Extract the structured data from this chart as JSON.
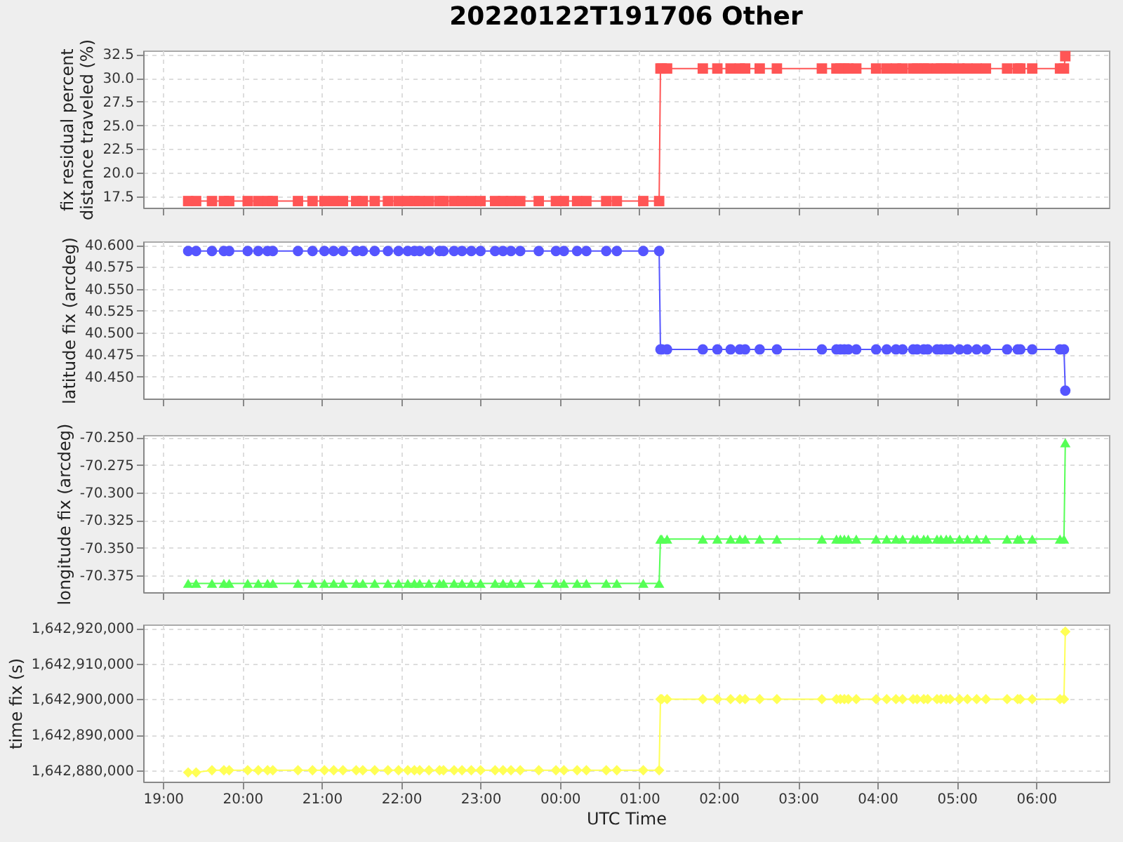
{
  "chart_data": [
    {
      "type": "line",
      "title": "20220122T191706 Other",
      "ylabel": "fix residual percent distance traveled (%)",
      "color": "#ff5555",
      "marker": "square",
      "line_style": "solid",
      "grid": true,
      "tick_labels": "y",
      "x": [
        "2022-01-22T19:19",
        "2022-01-22T19:25",
        "2022-01-22T19:37",
        "2022-01-22T19:46",
        "2022-01-22T19:50",
        "2022-01-22T20:04",
        "2022-01-22T20:12",
        "2022-01-22T20:19",
        "2022-01-22T20:23",
        "2022-01-22T20:42",
        "2022-01-22T20:53",
        "2022-01-22T21:02",
        "2022-01-22T21:09",
        "2022-01-22T21:16",
        "2022-01-22T21:26",
        "2022-01-22T21:31",
        "2022-01-22T21:40",
        "2022-01-22T21:50",
        "2022-01-22T21:58",
        "2022-01-22T22:05",
        "2022-01-22T22:10",
        "2022-01-22T22:14",
        "2022-01-22T22:21",
        "2022-01-22T22:29",
        "2022-01-22T22:32",
        "2022-01-22T22:40",
        "2022-01-22T22:46",
        "2022-01-22T22:53",
        "2022-01-22T23:00",
        "2022-01-22T23:11",
        "2022-01-22T23:17",
        "2022-01-22T23:23",
        "2022-01-22T23:30",
        "2022-01-22T23:44",
        "2022-01-22T23:57",
        "2022-01-23T00:03",
        "2022-01-23T00:13",
        "2022-01-23T00:20",
        "2022-01-23T00:35",
        "2022-01-23T00:43",
        "2022-01-23T01:03",
        "2022-01-23T01:15",
        "2022-01-23T01:16",
        "2022-01-23T01:17",
        "2022-01-23T01:21",
        "2022-01-23T01:48",
        "2022-01-23T01:59",
        "2022-01-23T02:09",
        "2022-01-23T02:16",
        "2022-01-23T02:20",
        "2022-01-23T02:31",
        "2022-01-23T02:44",
        "2022-01-23T03:18",
        "2022-01-23T03:29",
        "2022-01-23T03:32",
        "2022-01-23T03:35",
        "2022-01-23T03:38",
        "2022-01-23T03:44",
        "2022-01-23T03:59",
        "2022-01-23T04:07",
        "2022-01-23T04:14",
        "2022-01-23T04:19",
        "2022-01-23T04:27",
        "2022-01-23T04:30",
        "2022-01-23T04:35",
        "2022-01-23T04:38",
        "2022-01-23T04:45",
        "2022-01-23T04:48",
        "2022-01-23T04:52",
        "2022-01-23T04:55",
        "2022-01-23T05:02",
        "2022-01-23T05:08",
        "2022-01-23T05:15",
        "2022-01-23T05:22",
        "2022-01-23T05:38",
        "2022-01-23T05:46",
        "2022-01-23T05:48",
        "2022-01-23T05:57",
        "2022-01-23T06:18",
        "2022-01-23T06:21",
        "2022-01-23T06:22"
      ],
      "values": [
        17.0,
        17.0,
        17.0,
        17.0,
        17.0,
        17.0,
        17.0,
        17.0,
        17.0,
        17.0,
        17.0,
        17.0,
        17.0,
        17.0,
        17.0,
        17.0,
        17.0,
        17.0,
        17.0,
        17.0,
        17.0,
        17.0,
        17.0,
        17.0,
        17.0,
        17.0,
        17.0,
        17.0,
        17.0,
        17.0,
        17.0,
        17.0,
        17.0,
        17.0,
        17.0,
        17.0,
        17.0,
        17.0,
        17.0,
        17.0,
        17.0,
        17.0,
        31.0,
        31.0,
        31.0,
        31.0,
        31.0,
        31.0,
        31.0,
        31.0,
        31.0,
        31.0,
        31.0,
        31.0,
        31.0,
        31.0,
        31.0,
        31.0,
        31.0,
        31.0,
        31.0,
        31.0,
        31.0,
        31.0,
        31.0,
        31.0,
        31.0,
        31.0,
        31.0,
        31.0,
        31.0,
        31.0,
        31.0,
        31.0,
        31.0,
        31.0,
        31.0,
        31.0,
        31.0,
        31.0,
        32.3
      ],
      "xlim": [
        "2022-01-22T18:45",
        "2022-01-23T06:55"
      ],
      "xticks": [
        {
          "value": "2022-01-22T19:00",
          "label": null
        },
        {
          "value": "2022-01-22T20:00",
          "label": null
        },
        {
          "value": "2022-01-22T21:00",
          "label": null
        },
        {
          "value": "2022-01-22T22:00",
          "label": null
        },
        {
          "value": "2022-01-22T23:00",
          "label": null
        },
        {
          "value": "2022-01-23T00:00",
          "label": null
        },
        {
          "value": "2022-01-23T01:00",
          "label": null
        },
        {
          "value": "2022-01-23T02:00",
          "label": null
        },
        {
          "value": "2022-01-23T03:00",
          "label": null
        },
        {
          "value": "2022-01-23T04:00",
          "label": null
        },
        {
          "value": "2022-01-23T05:00",
          "label": null
        },
        {
          "value": "2022-01-23T06:00",
          "label": null
        }
      ],
      "ylim": [
        16.3,
        32.9
      ],
      "yticks": [
        17.5,
        {
          "value": 20,
          "label": "20.0"
        },
        22.5,
        {
          "value": 25,
          "label": "25.0"
        },
        27.5,
        {
          "value": 30,
          "label": "30.0"
        },
        32.5
      ]
    },
    {
      "type": "line",
      "ylabel": "latitude fix (arcdeg)",
      "color": "#5555ff",
      "marker": "circle",
      "line_style": "solid",
      "grid": true,
      "tick_labels": "y",
      "x": [
        "2022-01-22T19:19",
        "2022-01-22T19:25",
        "2022-01-22T19:37",
        "2022-01-22T19:46",
        "2022-01-22T19:50",
        "2022-01-22T20:04",
        "2022-01-22T20:12",
        "2022-01-22T20:19",
        "2022-01-22T20:23",
        "2022-01-22T20:42",
        "2022-01-22T20:53",
        "2022-01-22T21:02",
        "2022-01-22T21:09",
        "2022-01-22T21:16",
        "2022-01-22T21:26",
        "2022-01-22T21:31",
        "2022-01-22T21:40",
        "2022-01-22T21:50",
        "2022-01-22T21:58",
        "2022-01-22T22:05",
        "2022-01-22T22:10",
        "2022-01-22T22:14",
        "2022-01-22T22:21",
        "2022-01-22T22:29",
        "2022-01-22T22:32",
        "2022-01-22T22:40",
        "2022-01-22T22:46",
        "2022-01-22T22:53",
        "2022-01-22T23:00",
        "2022-01-22T23:11",
        "2022-01-22T23:17",
        "2022-01-22T23:23",
        "2022-01-22T23:30",
        "2022-01-22T23:44",
        "2022-01-22T23:57",
        "2022-01-23T00:03",
        "2022-01-23T00:13",
        "2022-01-23T00:20",
        "2022-01-23T00:35",
        "2022-01-23T00:43",
        "2022-01-23T01:03",
        "2022-01-23T01:15",
        "2022-01-23T01:16",
        "2022-01-23T01:17",
        "2022-01-23T01:21",
        "2022-01-23T01:48",
        "2022-01-23T01:59",
        "2022-01-23T02:09",
        "2022-01-23T02:16",
        "2022-01-23T02:20",
        "2022-01-23T02:31",
        "2022-01-23T02:44",
        "2022-01-23T03:18",
        "2022-01-23T03:29",
        "2022-01-23T03:32",
        "2022-01-23T03:35",
        "2022-01-23T03:38",
        "2022-01-23T03:44",
        "2022-01-23T03:59",
        "2022-01-23T04:07",
        "2022-01-23T04:14",
        "2022-01-23T04:19",
        "2022-01-23T04:27",
        "2022-01-23T04:30",
        "2022-01-23T04:35",
        "2022-01-23T04:38",
        "2022-01-23T04:45",
        "2022-01-23T04:48",
        "2022-01-23T04:52",
        "2022-01-23T04:55",
        "2022-01-23T05:02",
        "2022-01-23T05:08",
        "2022-01-23T05:15",
        "2022-01-23T05:22",
        "2022-01-23T05:38",
        "2022-01-23T05:46",
        "2022-01-23T05:48",
        "2022-01-23T05:57",
        "2022-01-23T06:18",
        "2022-01-23T06:21",
        "2022-01-23T06:22"
      ],
      "values": [
        40.593,
        40.593,
        40.593,
        40.593,
        40.593,
        40.593,
        40.593,
        40.593,
        40.593,
        40.593,
        40.593,
        40.593,
        40.593,
        40.593,
        40.593,
        40.593,
        40.593,
        40.593,
        40.593,
        40.593,
        40.593,
        40.593,
        40.593,
        40.593,
        40.593,
        40.593,
        40.593,
        40.593,
        40.593,
        40.593,
        40.593,
        40.593,
        40.593,
        40.593,
        40.593,
        40.593,
        40.593,
        40.593,
        40.593,
        40.593,
        40.593,
        40.593,
        40.481,
        40.481,
        40.481,
        40.481,
        40.481,
        40.481,
        40.481,
        40.481,
        40.481,
        40.481,
        40.481,
        40.481,
        40.481,
        40.481,
        40.481,
        40.481,
        40.481,
        40.481,
        40.481,
        40.481,
        40.481,
        40.481,
        40.481,
        40.481,
        40.481,
        40.481,
        40.481,
        40.481,
        40.481,
        40.481,
        40.481,
        40.481,
        40.481,
        40.481,
        40.481,
        40.481,
        40.481,
        40.481,
        40.434
      ],
      "xlim": [
        "2022-01-22T18:45",
        "2022-01-23T06:55"
      ],
      "xticks": [
        {
          "value": "2022-01-22T19:00",
          "label": null
        },
        {
          "value": "2022-01-22T20:00",
          "label": null
        },
        {
          "value": "2022-01-22T21:00",
          "label": null
        },
        {
          "value": "2022-01-22T22:00",
          "label": null
        },
        {
          "value": "2022-01-22T23:00",
          "label": null
        },
        {
          "value": "2022-01-23T00:00",
          "label": null
        },
        {
          "value": "2022-01-23T01:00",
          "label": null
        },
        {
          "value": "2022-01-23T02:00",
          "label": null
        },
        {
          "value": "2022-01-23T03:00",
          "label": null
        },
        {
          "value": "2022-01-23T04:00",
          "label": null
        },
        {
          "value": "2022-01-23T05:00",
          "label": null
        },
        {
          "value": "2022-01-23T06:00",
          "label": null
        }
      ],
      "ylim": [
        40.425,
        40.604
      ],
      "yticks": [
        {
          "value": 40.45,
          "label": "40.450"
        },
        {
          "value": 40.475,
          "label": "40.475"
        },
        {
          "value": 40.5,
          "label": "40.500"
        },
        {
          "value": 40.525,
          "label": "40.525"
        },
        {
          "value": 40.55,
          "label": "40.550"
        },
        {
          "value": 40.575,
          "label": "40.575"
        },
        {
          "value": 40.6,
          "label": "40.600"
        }
      ]
    },
    {
      "type": "line",
      "ylabel": "longitude fix (arcdeg)",
      "color": "#55ff55",
      "marker": "triangle",
      "line_style": "solid",
      "grid": true,
      "tick_labels": "y",
      "x": [
        "2022-01-22T19:19",
        "2022-01-22T19:25",
        "2022-01-22T19:37",
        "2022-01-22T19:46",
        "2022-01-22T19:50",
        "2022-01-22T20:04",
        "2022-01-22T20:12",
        "2022-01-22T20:19",
        "2022-01-22T20:23",
        "2022-01-22T20:42",
        "2022-01-22T20:53",
        "2022-01-22T21:02",
        "2022-01-22T21:09",
        "2022-01-22T21:16",
        "2022-01-22T21:26",
        "2022-01-22T21:31",
        "2022-01-22T21:40",
        "2022-01-22T21:50",
        "2022-01-22T21:58",
        "2022-01-22T22:05",
        "2022-01-22T22:10",
        "2022-01-22T22:14",
        "2022-01-22T22:21",
        "2022-01-22T22:29",
        "2022-01-22T22:32",
        "2022-01-22T22:40",
        "2022-01-22T22:46",
        "2022-01-22T22:53",
        "2022-01-22T23:00",
        "2022-01-22T23:11",
        "2022-01-22T23:17",
        "2022-01-22T23:23",
        "2022-01-22T23:30",
        "2022-01-22T23:44",
        "2022-01-22T23:57",
        "2022-01-23T00:03",
        "2022-01-23T00:13",
        "2022-01-23T00:20",
        "2022-01-23T00:35",
        "2022-01-23T00:43",
        "2022-01-23T01:03",
        "2022-01-23T01:15",
        "2022-01-23T01:16",
        "2022-01-23T01:17",
        "2022-01-23T01:21",
        "2022-01-23T01:48",
        "2022-01-23T01:59",
        "2022-01-23T02:09",
        "2022-01-23T02:16",
        "2022-01-23T02:20",
        "2022-01-23T02:31",
        "2022-01-23T02:44",
        "2022-01-23T03:18",
        "2022-01-23T03:29",
        "2022-01-23T03:32",
        "2022-01-23T03:35",
        "2022-01-23T03:38",
        "2022-01-23T03:44",
        "2022-01-23T03:59",
        "2022-01-23T04:07",
        "2022-01-23T04:14",
        "2022-01-23T04:19",
        "2022-01-23T04:27",
        "2022-01-23T04:30",
        "2022-01-23T04:35",
        "2022-01-23T04:38",
        "2022-01-23T04:45",
        "2022-01-23T04:48",
        "2022-01-23T04:52",
        "2022-01-23T04:55",
        "2022-01-23T05:02",
        "2022-01-23T05:08",
        "2022-01-23T05:15",
        "2022-01-23T05:22",
        "2022-01-23T05:38",
        "2022-01-23T05:46",
        "2022-01-23T05:48",
        "2022-01-23T05:57",
        "2022-01-23T06:18",
        "2022-01-23T06:21",
        "2022-01-23T06:22"
      ],
      "values": [
        -70.382,
        -70.382,
        -70.382,
        -70.382,
        -70.382,
        -70.382,
        -70.382,
        -70.382,
        -70.382,
        -70.382,
        -70.382,
        -70.382,
        -70.382,
        -70.382,
        -70.382,
        -70.382,
        -70.382,
        -70.382,
        -70.382,
        -70.382,
        -70.382,
        -70.382,
        -70.382,
        -70.382,
        -70.382,
        -70.382,
        -70.382,
        -70.382,
        -70.382,
        -70.382,
        -70.382,
        -70.382,
        -70.382,
        -70.382,
        -70.382,
        -70.382,
        -70.382,
        -70.382,
        -70.382,
        -70.382,
        -70.382,
        -70.382,
        -70.342,
        -70.342,
        -70.342,
        -70.342,
        -70.342,
        -70.342,
        -70.342,
        -70.342,
        -70.342,
        -70.342,
        -70.342,
        -70.342,
        -70.342,
        -70.342,
        -70.342,
        -70.342,
        -70.342,
        -70.342,
        -70.342,
        -70.342,
        -70.342,
        -70.342,
        -70.342,
        -70.342,
        -70.342,
        -70.342,
        -70.342,
        -70.342,
        -70.342,
        -70.342,
        -70.342,
        -70.342,
        -70.342,
        -70.342,
        -70.342,
        -70.342,
        -70.342,
        -70.342,
        -70.255
      ],
      "xlim": [
        "2022-01-22T18:45",
        "2022-01-23T06:55"
      ],
      "xticks": [
        {
          "value": "2022-01-22T19:00",
          "label": null
        },
        {
          "value": "2022-01-22T20:00",
          "label": null
        },
        {
          "value": "2022-01-22T21:00",
          "label": null
        },
        {
          "value": "2022-01-22T22:00",
          "label": null
        },
        {
          "value": "2022-01-22T23:00",
          "label": null
        },
        {
          "value": "2022-01-23T00:00",
          "label": null
        },
        {
          "value": "2022-01-23T01:00",
          "label": null
        },
        {
          "value": "2022-01-23T02:00",
          "label": null
        },
        {
          "value": "2022-01-23T03:00",
          "label": null
        },
        {
          "value": "2022-01-23T04:00",
          "label": null
        },
        {
          "value": "2022-01-23T05:00",
          "label": null
        },
        {
          "value": "2022-01-23T06:00",
          "label": null
        }
      ],
      "ylim": [
        -70.39,
        -70.248
      ],
      "yticks": [
        {
          "value": -70.375,
          "label": "-70.375"
        },
        {
          "value": -70.35,
          "label": "-70.350"
        },
        {
          "value": -70.325,
          "label": "-70.325"
        },
        {
          "value": -70.3,
          "label": "-70.300"
        },
        {
          "value": -70.275,
          "label": "-70.275"
        },
        {
          "value": -70.25,
          "label": "-70.250"
        }
      ]
    },
    {
      "type": "line",
      "xlabel": "UTC Time",
      "ylabel": "time fix (s)",
      "color": "#ffff55",
      "marker": "diamond",
      "line_style": "solid",
      "grid": true,
      "x": [
        "2022-01-22T19:19",
        "2022-01-22T19:25",
        "2022-01-22T19:37",
        "2022-01-22T19:46",
        "2022-01-22T19:50",
        "2022-01-22T20:04",
        "2022-01-22T20:12",
        "2022-01-22T20:19",
        "2022-01-22T20:23",
        "2022-01-22T20:42",
        "2022-01-22T20:53",
        "2022-01-22T21:02",
        "2022-01-22T21:09",
        "2022-01-22T21:16",
        "2022-01-22T21:26",
        "2022-01-22T21:31",
        "2022-01-22T21:40",
        "2022-01-22T21:50",
        "2022-01-22T21:58",
        "2022-01-22T22:05",
        "2022-01-22T22:10",
        "2022-01-22T22:14",
        "2022-01-22T22:21",
        "2022-01-22T22:29",
        "2022-01-22T22:32",
        "2022-01-22T22:40",
        "2022-01-22T22:46",
        "2022-01-22T22:53",
        "2022-01-22T23:00",
        "2022-01-22T23:11",
        "2022-01-22T23:17",
        "2022-01-22T23:23",
        "2022-01-22T23:30",
        "2022-01-22T23:44",
        "2022-01-22T23:57",
        "2022-01-23T00:03",
        "2022-01-23T00:13",
        "2022-01-23T00:20",
        "2022-01-23T00:35",
        "2022-01-23T00:43",
        "2022-01-23T01:03",
        "2022-01-23T01:15",
        "2022-01-23T01:16",
        "2022-01-23T01:17",
        "2022-01-23T01:21",
        "2022-01-23T01:48",
        "2022-01-23T01:59",
        "2022-01-23T02:09",
        "2022-01-23T02:16",
        "2022-01-23T02:20",
        "2022-01-23T02:31",
        "2022-01-23T02:44",
        "2022-01-23T03:18",
        "2022-01-23T03:29",
        "2022-01-23T03:32",
        "2022-01-23T03:35",
        "2022-01-23T03:38",
        "2022-01-23T03:44",
        "2022-01-23T03:59",
        "2022-01-23T04:07",
        "2022-01-23T04:14",
        "2022-01-23T04:19",
        "2022-01-23T04:27",
        "2022-01-23T04:30",
        "2022-01-23T04:35",
        "2022-01-23T04:38",
        "2022-01-23T04:45",
        "2022-01-23T04:48",
        "2022-01-23T04:52",
        "2022-01-23T04:55",
        "2022-01-23T05:02",
        "2022-01-23T05:08",
        "2022-01-23T05:15",
        "2022-01-23T05:22",
        "2022-01-23T05:38",
        "2022-01-23T05:46",
        "2022-01-23T05:48",
        "2022-01-23T05:57",
        "2022-01-23T06:18",
        "2022-01-23T06:21",
        "2022-01-23T06:22"
      ],
      "values": [
        1642879400,
        1642879400,
        1642880000,
        1642880000,
        1642880000,
        1642880000,
        1642880000,
        1642880000,
        1642880000,
        1642880000,
        1642880000,
        1642880000,
        1642880000,
        1642880000,
        1642880000,
        1642880000,
        1642880000,
        1642880000,
        1642880000,
        1642880000,
        1642880000,
        1642880000,
        1642880000,
        1642880000,
        1642880000,
        1642880000,
        1642880000,
        1642880000,
        1642880000,
        1642880000,
        1642880000,
        1642880000,
        1642880000,
        1642880000,
        1642880000,
        1642880000,
        1642880000,
        1642880000,
        1642880000,
        1642880000,
        1642880000,
        1642880000,
        1642900000,
        1642900000,
        1642900000,
        1642900000,
        1642900000,
        1642900000,
        1642900000,
        1642900000,
        1642900000,
        1642900000,
        1642900000,
        1642900000,
        1642900000,
        1642900000,
        1642900000,
        1642900000,
        1642900000,
        1642900000,
        1642900000,
        1642900000,
        1642900000,
        1642900000,
        1642900000,
        1642900000,
        1642900000,
        1642900000,
        1642900000,
        1642900000,
        1642900000,
        1642900000,
        1642900000,
        1642900000,
        1642900000,
        1642900000,
        1642900000,
        1642900000,
        1642900000,
        1642900000,
        1642919000
      ],
      "xlim": [
        "2022-01-22T18:45",
        "2022-01-23T06:55"
      ],
      "xticks": [
        {
          "value": "2022-01-22T19:00",
          "label": "19:00"
        },
        {
          "value": "2022-01-22T20:00",
          "label": "20:00"
        },
        {
          "value": "2022-01-22T21:00",
          "label": "21:00"
        },
        {
          "value": "2022-01-22T22:00",
          "label": "22:00"
        },
        {
          "value": "2022-01-22T23:00",
          "label": "23:00"
        },
        {
          "value": "2022-01-23T00:00",
          "label": "00:00"
        },
        {
          "value": "2022-01-23T01:00",
          "label": "01:00"
        },
        {
          "value": "2022-01-23T02:00",
          "label": "02:00"
        },
        {
          "value": "2022-01-23T03:00",
          "label": "03:00"
        },
        {
          "value": "2022-01-23T04:00",
          "label": "04:00"
        },
        {
          "value": "2022-01-23T05:00",
          "label": "05:00"
        },
        {
          "value": "2022-01-23T06:00",
          "label": "06:00"
        }
      ],
      "ylim": [
        1642876800,
        1642921000
      ],
      "yticks": [
        {
          "value": 1642880000,
          "label": "1,642,880,000"
        },
        {
          "value": 1642890000,
          "label": "1,642,890,000"
        },
        {
          "value": 1642900000,
          "label": "1,642,900,000"
        },
        {
          "value": 1642910000,
          "label": "1,642,910,000"
        },
        {
          "value": 1642920000,
          "label": "1,642,920,000"
        }
      ]
    }
  ]
}
